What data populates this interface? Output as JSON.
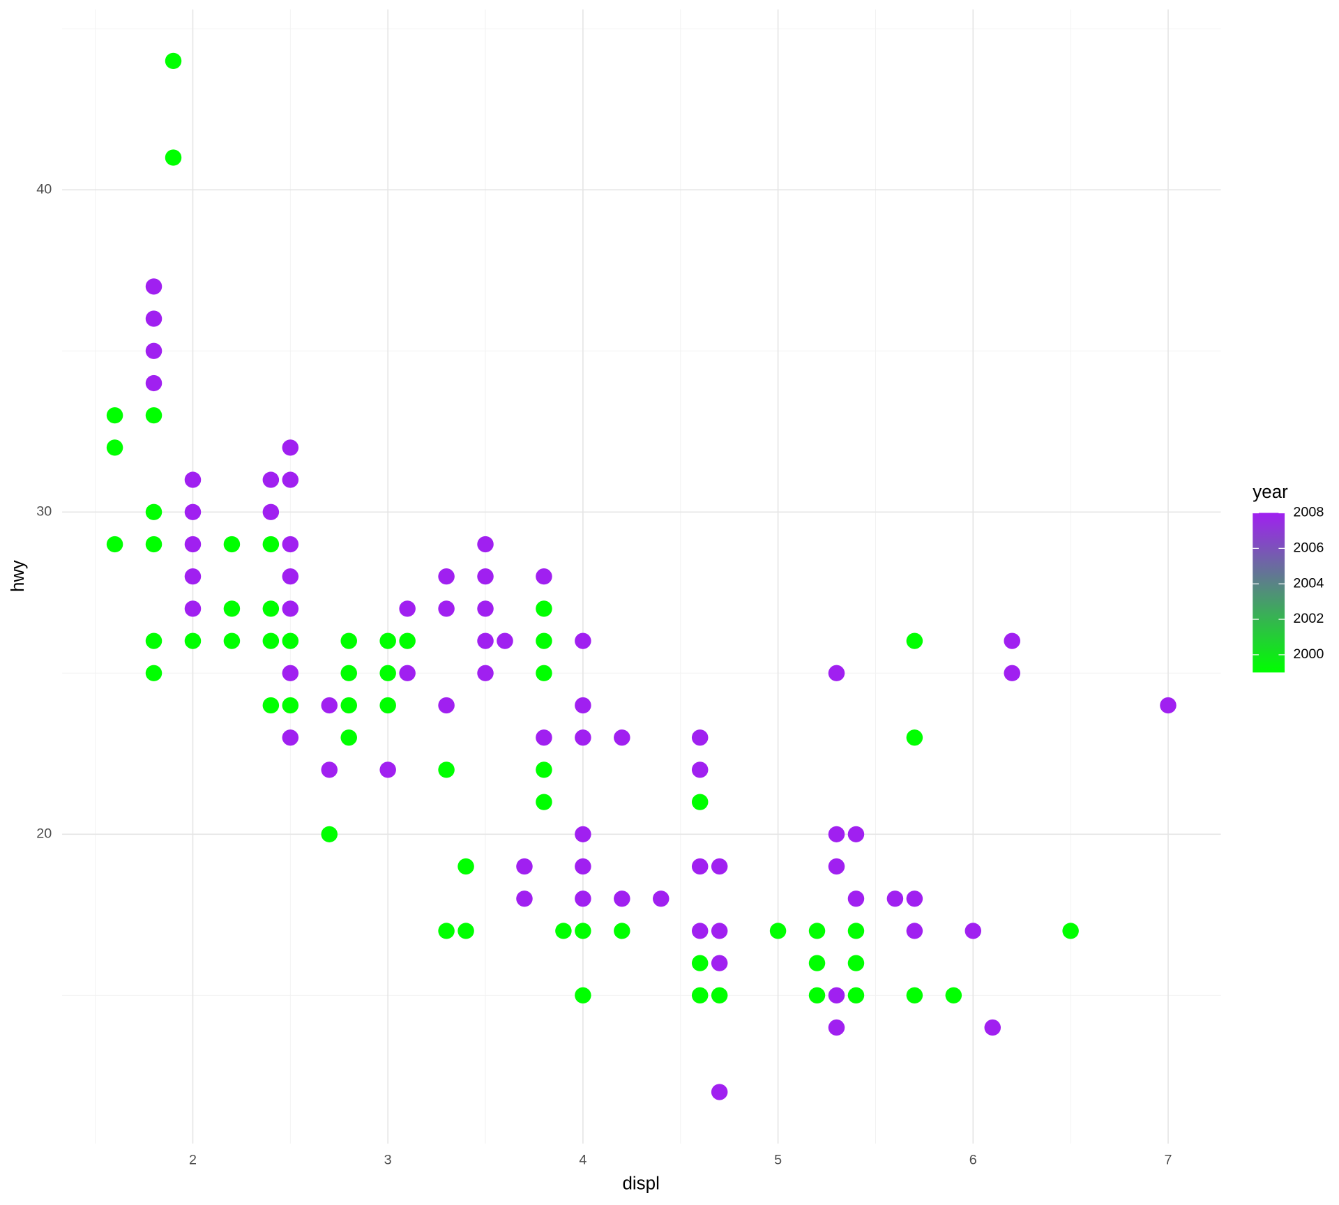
{
  "chart_data": {
    "type": "scatter",
    "x_label": "displ",
    "y_label": "hwy",
    "x": [
      1.9,
      1.9,
      1.6,
      1.6,
      1.6,
      1.8,
      1.8,
      1.8,
      1.8,
      1.8,
      1.8,
      1.8,
      1.8,
      1.8,
      2.0,
      2.0,
      2.0,
      2.0,
      2.0,
      2.0,
      2.2,
      2.2,
      2.2,
      2.4,
      2.4,
      2.4,
      2.4,
      2.4,
      2.4,
      2.5,
      2.5,
      2.5,
      2.5,
      2.5,
      2.5,
      2.5,
      2.5,
      2.5,
      2.7,
      2.7,
      2.7,
      2.8,
      2.8,
      2.8,
      2.8,
      3.0,
      3.0,
      3.0,
      3.0,
      3.1,
      3.1,
      3.1,
      3.3,
      3.3,
      3.3,
      3.3,
      3.3,
      3.4,
      3.4,
      3.5,
      3.5,
      3.5,
      3.5,
      3.5,
      3.6,
      3.7,
      3.7,
      3.8,
      3.8,
      3.8,
      3.8,
      3.8,
      3.8,
      3.8,
      3.9,
      4.0,
      4.0,
      4.0,
      4.0,
      4.0,
      4.0,
      4.0,
      4.0,
      4.2,
      4.2,
      4.2,
      4.4,
      4.6,
      4.6,
      4.6,
      4.6,
      4.6,
      4.6,
      4.6,
      4.7,
      4.7,
      4.7,
      4.7,
      4.7,
      5.0,
      5.2,
      5.2,
      5.2,
      5.3,
      5.3,
      5.3,
      5.3,
      5.3,
      5.4,
      5.4,
      5.4,
      5.4,
      5.4,
      5.6,
      5.7,
      5.7,
      5.7,
      5.7,
      5.7,
      5.9,
      6.0,
      6.1,
      6.2,
      6.2,
      6.5,
      7.0
    ],
    "values": [
      44,
      41,
      33,
      32,
      29,
      37,
      36,
      35,
      34,
      33,
      30,
      29,
      26,
      25,
      31,
      30,
      29,
      28,
      27,
      26,
      29,
      27,
      26,
      31,
      30,
      29,
      27,
      26,
      24,
      32,
      31,
      29,
      28,
      27,
      25,
      23,
      26,
      24,
      24,
      22,
      20,
      26,
      25,
      24,
      23,
      26,
      25,
      24,
      22,
      27,
      25,
      26,
      28,
      27,
      24,
      22,
      17,
      19,
      17,
      29,
      28,
      27,
      26,
      25,
      26,
      19,
      18,
      28,
      23,
      27,
      26,
      25,
      22,
      21,
      17,
      26,
      24,
      23,
      20,
      19,
      18,
      17,
      15,
      23,
      18,
      17,
      18,
      23,
      22,
      19,
      17,
      21,
      16,
      15,
      19,
      17,
      16,
      12,
      15,
      17,
      17,
      16,
      15,
      25,
      20,
      19,
      15,
      14,
      20,
      18,
      17,
      16,
      15,
      18,
      26,
      23,
      15,
      18,
      17,
      15,
      17,
      14,
      26,
      25,
      17,
      24
    ],
    "year": [
      1999,
      1999,
      1999,
      1999,
      1999,
      2008,
      2008,
      2008,
      2008,
      1999,
      1999,
      1999,
      1999,
      1999,
      2008,
      2008,
      2008,
      2008,
      2008,
      1999,
      1999,
      1999,
      1999,
      2008,
      2008,
      1999,
      1999,
      1999,
      1999,
      2008,
      2008,
      2008,
      2008,
      2008,
      2008,
      2008,
      1999,
      1999,
      2008,
      2008,
      1999,
      1999,
      1999,
      1999,
      1999,
      1999,
      1999,
      1999,
      2008,
      2008,
      2008,
      1999,
      2008,
      2008,
      2008,
      1999,
      1999,
      1999,
      1999,
      2008,
      2008,
      2008,
      2008,
      2008,
      2008,
      2008,
      2008,
      2008,
      2008,
      1999,
      1999,
      1999,
      1999,
      1999,
      1999,
      2008,
      2008,
      2008,
      2008,
      2008,
      2008,
      1999,
      1999,
      2008,
      2008,
      1999,
      2008,
      2008,
      2008,
      2008,
      2008,
      1999,
      1999,
      1999,
      2008,
      2008,
      2008,
      2008,
      1999,
      1999,
      1999,
      1999,
      1999,
      2008,
      2008,
      2008,
      2008,
      2008,
      2008,
      2008,
      1999,
      1999,
      1999,
      2008,
      1999,
      1999,
      1999,
      2008,
      2008,
      1999,
      2008,
      2008,
      2008,
      2008,
      1999,
      2008
    ],
    "xlim": [
      1.33,
      7.27
    ],
    "ylim": [
      10.4,
      45.6
    ],
    "xticks": [
      2,
      3,
      4,
      5,
      6,
      7
    ],
    "yticks": [
      20,
      30,
      40
    ],
    "xminor": [
      1.5,
      2.5,
      3.5,
      4.5,
      5.5,
      6.5
    ],
    "yminor": [
      15,
      25,
      35,
      45
    ],
    "grid": true,
    "colorbar": {
      "title": "year",
      "lim": [
        1999,
        2008
      ],
      "ticks": [
        2000,
        2002,
        2004,
        2006,
        2008
      ],
      "colors": [
        "#00ff00",
        "#a020f0"
      ]
    }
  }
}
